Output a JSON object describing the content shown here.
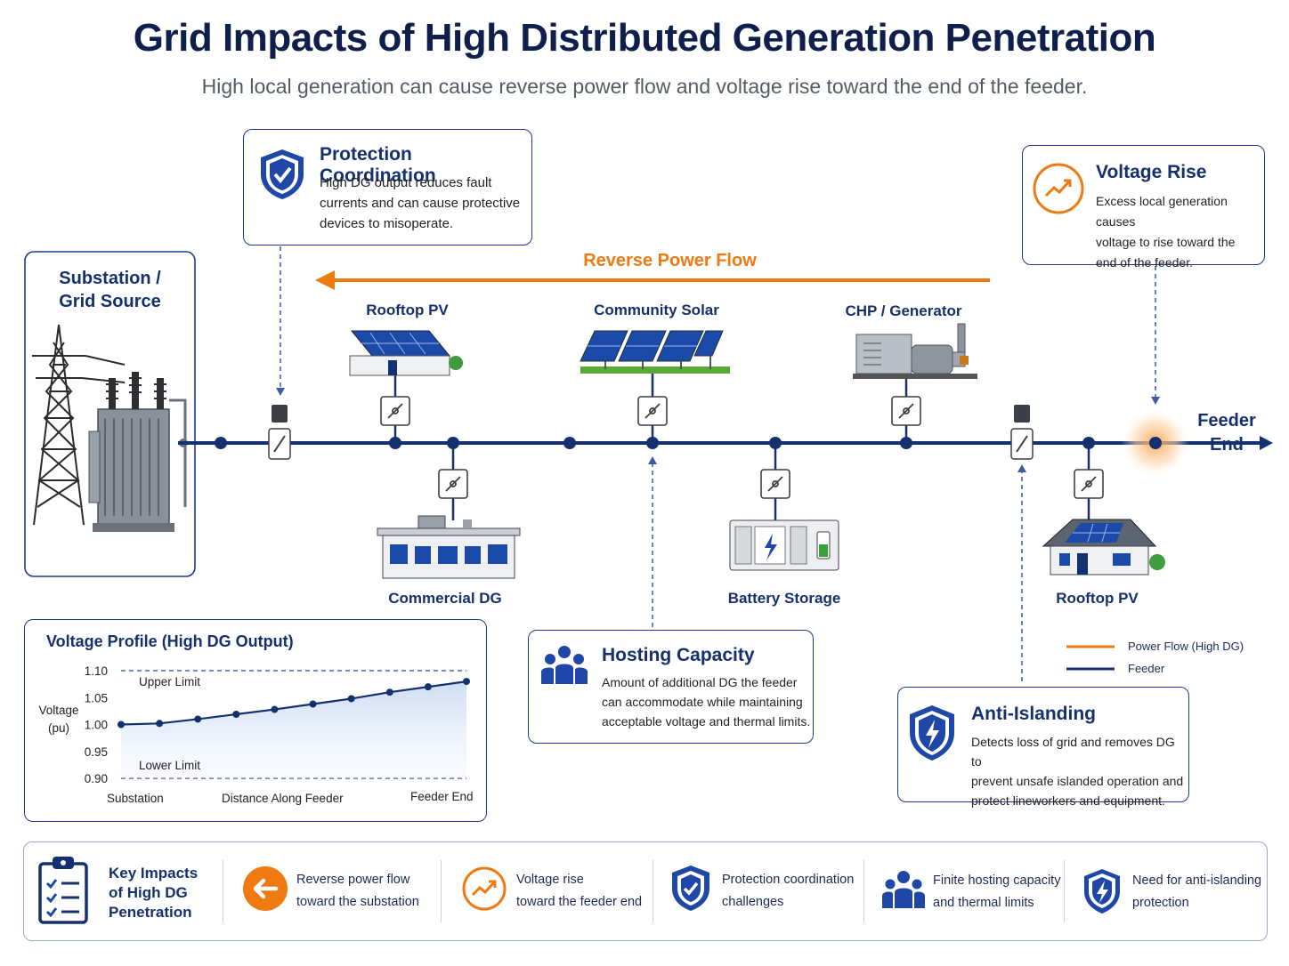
{
  "header": {
    "title": "Grid Impacts of High Distributed Generation Penetration",
    "subtitle": "High local generation can cause reverse power flow and voltage rise toward the end of the feeder."
  },
  "callouts": {
    "protection": {
      "title": "Protection Coordination",
      "lines": [
        "High DG output reduces fault",
        "currents and can cause protective",
        "devices to misoperate."
      ]
    },
    "voltage_rise": {
      "title": "Voltage Rise",
      "lines": [
        "Excess local generation causes",
        "voltage to rise toward the",
        "end of the feeder."
      ]
    },
    "hosting": {
      "title": "Hosting Capacity",
      "lines": [
        "Amount of additional DG the feeder",
        "can accommodate while maintaining",
        "acceptable voltage and thermal limits."
      ]
    },
    "anti_islanding": {
      "title": "Anti-Islanding",
      "lines": [
        "Detects loss of grid and removes DG to",
        "prevent unsafe islanded operation and",
        "protect lineworkers and equipment."
      ]
    }
  },
  "feeder": {
    "substation_label": [
      "Substation /",
      "Grid Source"
    ],
    "reverse_flow_label": "Reverse Power Flow",
    "feeder_end_label": [
      "Feeder",
      "End"
    ],
    "nodes": {
      "rooftop_pv_1": "Rooftop PV",
      "community_solar": "Community Solar",
      "chp": "CHP / Generator",
      "commercial_dg": "Commercial DG",
      "battery": "Battery Storage",
      "rooftop_pv_2": "Rooftop PV"
    }
  },
  "legend": {
    "items": [
      {
        "label": "Power Flow (High DG)",
        "color": "#f07a12"
      },
      {
        "label": "Feeder",
        "color": "#14306e"
      }
    ]
  },
  "voltage_chart": {
    "card_title": "Voltage Profile (High DG Output)",
    "upper_limit_label": "Upper Limit",
    "lower_limit_label": "Lower Limit",
    "ylabel": [
      "Voltage",
      "(pu)"
    ],
    "x_labels": [
      "Substation",
      "Distance Along Feeder",
      "Feeder End"
    ]
  },
  "chart_data": {
    "type": "line",
    "title": "Voltage Profile (High DG Output)",
    "ylabel": "Voltage (pu)",
    "xlabel": "Distance Along Feeder",
    "x_tick_labels": [
      "Substation",
      "Feeder End"
    ],
    "yticks": [
      "1.10",
      "1.05",
      "1.00",
      "0.95",
      "0.90"
    ],
    "ylim": [
      0.9,
      1.1
    ],
    "limits": {
      "upper": 1.1,
      "lower": 0.9
    },
    "series": [
      {
        "values": [
          1.0,
          1.002,
          1.01,
          1.019,
          1.028,
          1.038,
          1.048,
          1.06,
          1.07,
          1.08
        ]
      }
    ],
    "line_color": "#14306e"
  },
  "bottom_bar": {
    "heading": [
      "Key Impacts",
      "of High DG",
      "Penetration"
    ],
    "items": [
      {
        "icon": "left-arrow-icon",
        "lines": [
          "Reverse power flow",
          "toward the substation"
        ]
      },
      {
        "icon": "trend-up-icon",
        "lines": [
          "Voltage rise",
          "toward the feeder end"
        ]
      },
      {
        "icon": "shield-check-icon",
        "lines": [
          "Protection coordination",
          "challenges"
        ]
      },
      {
        "icon": "people-icon",
        "lines": [
          "Finite hosting capacity",
          "and thermal limits"
        ]
      },
      {
        "icon": "shield-bolt-icon",
        "lines": [
          "Need for anti-islanding",
          "protection"
        ]
      }
    ]
  },
  "colors": {
    "navy": "#14306e",
    "orange": "#f07a12",
    "blue_card_border": "#1f3a8a"
  }
}
